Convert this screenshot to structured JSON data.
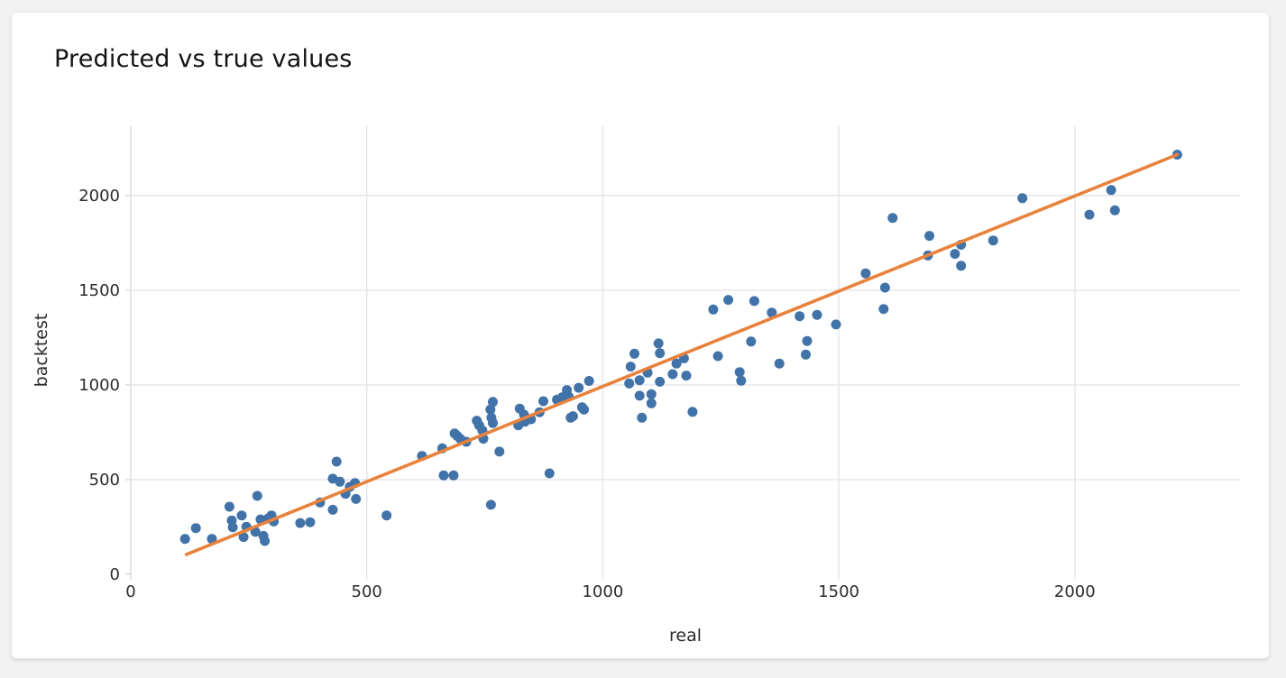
{
  "card": {
    "label": "chart card"
  },
  "chart_data": {
    "type": "scatter",
    "title": "Predicted vs true values",
    "xlabel": "real",
    "ylabel": "backtest",
    "xlim": [
      0,
      2350
    ],
    "ylim": [
      0,
      2366
    ],
    "x_ticks": [
      0,
      500,
      1000,
      1500,
      2000
    ],
    "y_ticks": [
      0,
      500,
      1000,
      1500,
      2000
    ],
    "grid": true,
    "legend": "none",
    "series": [
      {
        "name": "points",
        "type": "scatter",
        "points": [
          [
            115,
            187
          ],
          [
            138,
            244
          ],
          [
            172,
            187
          ],
          [
            209,
            357
          ],
          [
            214,
            284
          ],
          [
            216,
            248
          ],
          [
            235,
            311
          ],
          [
            239,
            197
          ],
          [
            245,
            251
          ],
          [
            264,
            224
          ],
          [
            268,
            414
          ],
          [
            275,
            290
          ],
          [
            281,
            203
          ],
          [
            284,
            176
          ],
          [
            291,
            295
          ],
          [
            298,
            311
          ],
          [
            303,
            279
          ],
          [
            359,
            271
          ],
          [
            380,
            275
          ],
          [
            401,
            379
          ],
          [
            428,
            341
          ],
          [
            428,
            505
          ],
          [
            436,
            595
          ],
          [
            443,
            489
          ],
          [
            455,
            425
          ],
          [
            464,
            462
          ],
          [
            475,
            482
          ],
          [
            477,
            398
          ],
          [
            542,
            311
          ],
          [
            617,
            625
          ],
          [
            660,
            665
          ],
          [
            663,
            522
          ],
          [
            684,
            522
          ],
          [
            686,
            744
          ],
          [
            691,
            732
          ],
          [
            698,
            716
          ],
          [
            711,
            700
          ],
          [
            733,
            811
          ],
          [
            738,
            787
          ],
          [
            745,
            760
          ],
          [
            747,
            716
          ],
          [
            762,
            870
          ],
          [
            764,
            827
          ],
          [
            767,
            910
          ],
          [
            767,
            799
          ],
          [
            781,
            648
          ],
          [
            763,
            367
          ],
          [
            821,
            787
          ],
          [
            824,
            875
          ],
          [
            833,
            843
          ],
          [
            835,
            806
          ],
          [
            848,
            819
          ],
          [
            866,
            856
          ],
          [
            874,
            914
          ],
          [
            887,
            533
          ],
          [
            903,
            922
          ],
          [
            914,
            935
          ],
          [
            924,
            973
          ],
          [
            928,
            938
          ],
          [
            932,
            827
          ],
          [
            937,
            835
          ],
          [
            949,
            985
          ],
          [
            956,
            882
          ],
          [
            960,
            870
          ],
          [
            971,
            1021
          ],
          [
            1056,
            1008
          ],
          [
            1059,
            1097
          ],
          [
            1067,
            1165
          ],
          [
            1078,
            943
          ],
          [
            1078,
            1025
          ],
          [
            1083,
            827
          ],
          [
            1095,
            1065
          ],
          [
            1103,
            951
          ],
          [
            1103,
            903
          ],
          [
            1118,
            1219
          ],
          [
            1121,
            1168
          ],
          [
            1121,
            1017
          ],
          [
            1148,
            1057
          ],
          [
            1156,
            1113
          ],
          [
            1172,
            1140
          ],
          [
            1177,
            1049
          ],
          [
            1190,
            858
          ],
          [
            1234,
            1398
          ],
          [
            1244,
            1152
          ],
          [
            1266,
            1449
          ],
          [
            1290,
            1068
          ],
          [
            1293,
            1022
          ],
          [
            1314,
            1229
          ],
          [
            1321,
            1443
          ],
          [
            1358,
            1382
          ],
          [
            1374,
            1113
          ],
          [
            1417,
            1363
          ],
          [
            1430,
            1160
          ],
          [
            1433,
            1232
          ],
          [
            1454,
            1370
          ],
          [
            1494,
            1319
          ],
          [
            1557,
            1589
          ],
          [
            1595,
            1401
          ],
          [
            1598,
            1514
          ],
          [
            1614,
            1882
          ],
          [
            1689,
            1684
          ],
          [
            1692,
            1787
          ],
          [
            1746,
            1692
          ],
          [
            1759,
            1740
          ],
          [
            1759,
            1629
          ],
          [
            1827,
            1763
          ],
          [
            1889,
            1986
          ],
          [
            2031,
            1899
          ],
          [
            2077,
            2029
          ],
          [
            2085,
            1922
          ],
          [
            2217,
            2216
          ]
        ]
      },
      {
        "name": "fit-line",
        "type": "line",
        "points": [
          [
            118,
            105
          ],
          [
            2217,
            2216
          ]
        ]
      }
    ],
    "colors": {
      "point": "#4273a8",
      "line": "#e8823c",
      "grid": "#e5e5ea",
      "axis": "#d9d9de",
      "tick_text": "#2b2b2b",
      "title_text": "#141414",
      "card_bg": "#ffffff",
      "page_bg": "#f2f2f3"
    }
  }
}
